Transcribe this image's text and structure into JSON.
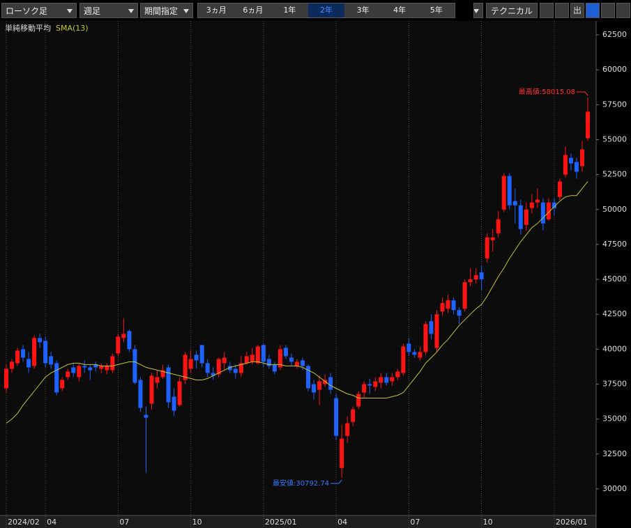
{
  "toolbar": {
    "chart_style": "ローソク足",
    "interval": "週足",
    "period_mode": "期間指定",
    "ranges": [
      "3ヵ月",
      "6ヵ月",
      "1年",
      "2年",
      "3年",
      "4年",
      "5年"
    ],
    "selected_range": "2年",
    "technical": "テクニカル"
  },
  "chart_data": {
    "type": "candlestick",
    "categories": [
      "2024/02",
      null,
      null,
      null,
      null,
      null,
      null,
      "04",
      null,
      null,
      null,
      null,
      null,
      null,
      null,
      null,
      null,
      null,
      null,
      null,
      "07",
      null,
      null,
      null,
      null,
      null,
      null,
      null,
      null,
      null,
      null,
      null,
      null,
      "10",
      null,
      null,
      null,
      null,
      null,
      null,
      null,
      null,
      null,
      null,
      null,
      null,
      "2025/01",
      null,
      null,
      null,
      null,
      null,
      null,
      null,
      null,
      null,
      null,
      null,
      null,
      "04",
      null,
      null,
      null,
      null,
      null,
      null,
      null,
      null,
      null,
      null,
      null,
      null,
      "07",
      null,
      null,
      null,
      null,
      null,
      null,
      null,
      null,
      null,
      null,
      null,
      null,
      "10",
      null,
      null,
      null,
      null,
      null,
      null,
      null,
      null,
      null,
      null,
      null,
      null,
      "2026/01",
      null,
      null,
      null,
      null,
      null,
      null
    ],
    "open": [
      37200,
      38600,
      39000,
      40000,
      39300,
      38800,
      40800,
      40600,
      39500,
      39000,
      37200,
      38000,
      38700,
      38000,
      38800,
      38700,
      38900,
      38600,
      38500,
      38500,
      39700,
      40800,
      41300,
      40000,
      37800,
      35300,
      36100,
      37600,
      38000,
      38700,
      36600,
      36000,
      37800,
      38600,
      39600,
      40300,
      39000,
      38300,
      38200,
      39000,
      38800,
      38600,
      38300,
      39000,
      39100,
      39000,
      40300,
      39300,
      38900,
      38700,
      40100,
      39400,
      38800,
      39200,
      38800,
      37500,
      37100,
      37500,
      38000,
      36500,
      31500,
      33800,
      34800,
      35900,
      36900,
      37500,
      37300,
      37600,
      38000,
      37700,
      38000,
      38300,
      40400,
      39800,
      39400,
      39800,
      42000,
      40100,
      42700,
      42900,
      43500,
      42800,
      42900,
      44800,
      45000,
      45500,
      46500,
      47800,
      48300,
      50000,
      52400,
      50600,
      50300,
      48900,
      50100,
      50500,
      50500,
      49300,
      50500,
      50900,
      52500,
      53700,
      53400,
      53100,
      55100
    ],
    "high": [
      38900,
      39300,
      40100,
      40300,
      39800,
      41000,
      41100,
      40900,
      39800,
      39200,
      38000,
      38600,
      39000,
      39000,
      39200,
      38900,
      39100,
      39000,
      39000,
      39700,
      41100,
      42200,
      41400,
      40300,
      38000,
      35900,
      38300,
      38500,
      38900,
      38900,
      37200,
      38000,
      39800,
      39900,
      39900,
      40300,
      39300,
      38700,
      39400,
      39800,
      39100,
      38900,
      39500,
      39800,
      40100,
      40300,
      40400,
      39600,
      39100,
      40300,
      40300,
      39700,
      39300,
      39400,
      38900,
      37800,
      38100,
      38200,
      38300,
      36800,
      34600,
      35200,
      35900,
      37000,
      37700,
      37900,
      38000,
      38300,
      38300,
      38300,
      38600,
      40400,
      40800,
      40000,
      40200,
      42000,
      42500,
      42800,
      43700,
      43900,
      43700,
      43000,
      45000,
      45800,
      45800,
      46000,
      48300,
      48600,
      49900,
      52600,
      52600,
      51500,
      50700,
      50500,
      51100,
      51500,
      50800,
      50800,
      50800,
      52200,
      54500,
      54000,
      53700,
      54900,
      58015.08
    ],
    "low": [
      36900,
      38300,
      38800,
      39100,
      38300,
      38600,
      40100,
      38700,
      38600,
      36700,
      37000,
      37800,
      38000,
      37700,
      38300,
      37800,
      38400,
      38300,
      38200,
      38300,
      39500,
      40500,
      39800,
      37500,
      35500,
      31156,
      35700,
      37200,
      37900,
      35800,
      35200,
      35900,
      37500,
      38300,
      38600,
      38700,
      38000,
      37800,
      38000,
      38500,
      38300,
      37900,
      38000,
      38900,
      38900,
      38900,
      38700,
      38600,
      38200,
      38500,
      39300,
      38800,
      38600,
      38500,
      37000,
      36400,
      36000,
      37300,
      36800,
      33500,
      30792.74,
      33300,
      34500,
      35700,
      36500,
      36800,
      37000,
      37200,
      37400,
      37400,
      37800,
      38100,
      39500,
      39400,
      39200,
      39600,
      40700,
      39800,
      42400,
      42600,
      42500,
      41800,
      42700,
      44500,
      44700,
      44200,
      46200,
      47000,
      48000,
      49800,
      50000,
      49000,
      48200,
      48500,
      49700,
      50100,
      48500,
      49200,
      49600,
      50700,
      52300,
      52800,
      52200,
      52700,
      54900
    ],
    "close": [
      38600,
      39100,
      39900,
      39400,
      38700,
      40800,
      40500,
      39000,
      38900,
      36900,
      37800,
      38400,
      38300,
      38800,
      38700,
      38500,
      38700,
      38800,
      38800,
      39500,
      40900,
      41100,
      40000,
      37600,
      35800,
      35100,
      38100,
      38000,
      38500,
      36200,
      35600,
      37700,
      39600,
      39300,
      39200,
      39000,
      38300,
      38100,
      39300,
      39400,
      38500,
      38300,
      39000,
      39500,
      39600,
      40200,
      39100,
      38800,
      38400,
      40000,
      39500,
      39100,
      39100,
      38800,
      37200,
      36900,
      37700,
      37800,
      37100,
      33800,
      33600,
      34700,
      35700,
      36800,
      37500,
      37400,
      37700,
      38000,
      37600,
      38000,
      38400,
      40200,
      39800,
      39600,
      39800,
      41800,
      41100,
      42500,
      43300,
      43500,
      42800,
      42400,
      44800,
      45000,
      45300,
      45000,
      48000,
      48000,
      49300,
      52400,
      50300,
      50300,
      48600,
      50000,
      50500,
      50700,
      49000,
      50500,
      50100,
      52000,
      53900,
      53300,
      52700,
      54300,
      57000
    ],
    "up_color": "#ff1414",
    "down_color": "#1e62ff",
    "indicator": {
      "name": "単純移動平均",
      "label": "SMA(13)",
      "color": "#c4c43a",
      "values": [
        34700,
        35000,
        35400,
        36000,
        36500,
        37000,
        37500,
        38000,
        38300,
        38500,
        38700,
        38900,
        39000,
        39000,
        38900,
        38900,
        38900,
        38800,
        38800,
        38800,
        38900,
        39000,
        39100,
        39100,
        38900,
        38700,
        38600,
        38500,
        38400,
        38300,
        38200,
        38100,
        38000,
        37900,
        37800,
        37800,
        37900,
        38100,
        38300,
        38500,
        38700,
        38800,
        38900,
        39000,
        39100,
        39100,
        39000,
        38900,
        38900,
        38900,
        38800,
        38800,
        38800,
        38700,
        38500,
        38300,
        38000,
        37700,
        37400,
        37200,
        37000,
        36800,
        36700,
        36500,
        36500,
        36500,
        36500,
        36500,
        36500,
        36600,
        36700,
        36900,
        37400,
        37900,
        38400,
        39000,
        39400,
        39800,
        40300,
        40700,
        41200,
        41700,
        42100,
        42500,
        42900,
        43200,
        43800,
        44500,
        45200,
        45800,
        46500,
        47100,
        47700,
        48200,
        48700,
        49000,
        49400,
        49800,
        50200,
        50600,
        50900,
        51000,
        51000,
        51500,
        52000
      ]
    },
    "annotations": [
      {
        "text": "最高値:58015.08",
        "color": "#ff3030"
      },
      {
        "text": "最安値:30792.74",
        "color": "#3a7bff"
      }
    ],
    "ylim": [
      28100,
      63500
    ],
    "yticks": [
      30000,
      32500,
      35000,
      37500,
      40000,
      42500,
      45000,
      47500,
      50000,
      52500,
      55000,
      57500,
      60000,
      62500
    ]
  }
}
